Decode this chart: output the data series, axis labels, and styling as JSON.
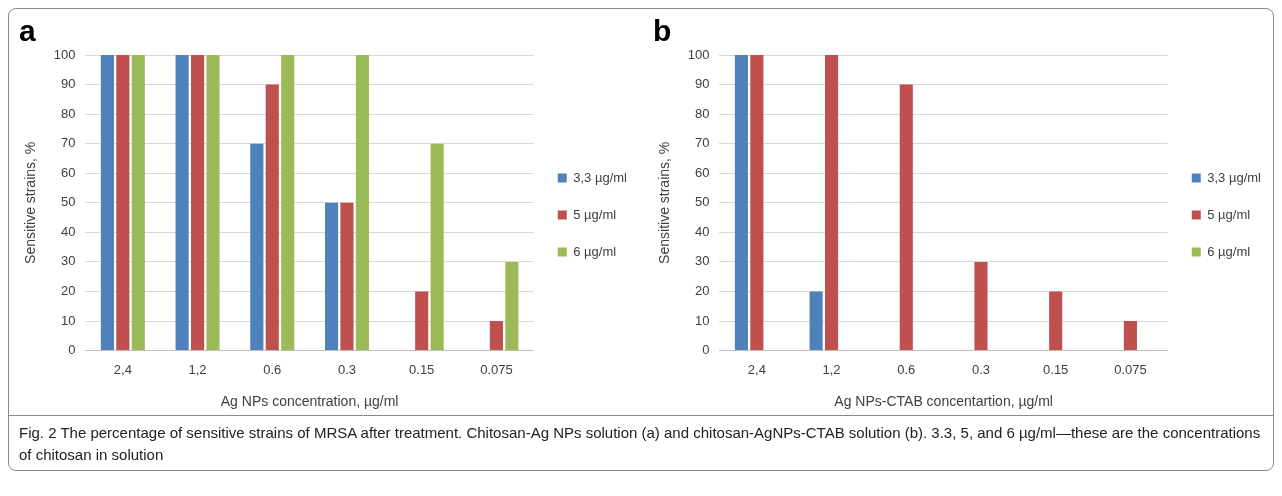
{
  "chart_data": [
    {
      "type": "bar",
      "title": "a",
      "xlabel": "Ag NPs concentration, µg/ml",
      "ylabel": "Sensitive strains, %",
      "categories": [
        "2,4",
        "1,2",
        "0.6",
        "0.3",
        "0.15",
        "0.075"
      ],
      "series": [
        {
          "name": "3,3 µg/ml",
          "color": "#4f81bd",
          "values": [
            100,
            100,
            70,
            50,
            0,
            0
          ]
        },
        {
          "name": "5 µg/ml",
          "color": "#c0504d",
          "values": [
            100,
            100,
            90,
            50,
            20,
            10
          ]
        },
        {
          "name": "6 µg/ml",
          "color": "#9bbb59",
          "values": [
            100,
            100,
            100,
            100,
            70,
            30
          ]
        }
      ],
      "ylim": [
        0,
        100
      ],
      "yticks": [
        0,
        10,
        20,
        30,
        40,
        50,
        60,
        70,
        80,
        90,
        100
      ],
      "grid": "y",
      "legend": "right",
      "annotations": [
        "Fig. 2 The percentage of sensitive strains of MRSA after treatment. Chitosan-Ag NPs solution (a) and chitosan-AgNPs-CTAB solution (b). 3.3, 5, and 6 µg/ml—these are the concentrations of chitosan in solution"
      ]
    },
    {
      "type": "bar",
      "title": "b",
      "xlabel": "Ag NPs-CTAB concentartion, µg/ml",
      "ylabel": "Sensitive strains, %",
      "categories": [
        "2,4",
        "1,2",
        "0.6",
        "0.3",
        "0.15",
        "0.075"
      ],
      "series": [
        {
          "name": "3,3 µg/ml",
          "color": "#4f81bd",
          "values": [
            100,
            20,
            0,
            0,
            0,
            0
          ]
        },
        {
          "name": "5 µg/ml",
          "color": "#c0504d",
          "values": [
            100,
            100,
            90,
            30,
            20,
            10
          ]
        },
        {
          "name": "6 µg/ml",
          "color": "#9bbb59",
          "values": [
            0,
            0,
            0,
            0,
            0,
            0
          ]
        }
      ],
      "ylim": [
        0,
        100
      ],
      "yticks": [
        0,
        10,
        20,
        30,
        40,
        50,
        60,
        70,
        80,
        90,
        100
      ],
      "grid": "y",
      "legend": "right"
    }
  ]
}
